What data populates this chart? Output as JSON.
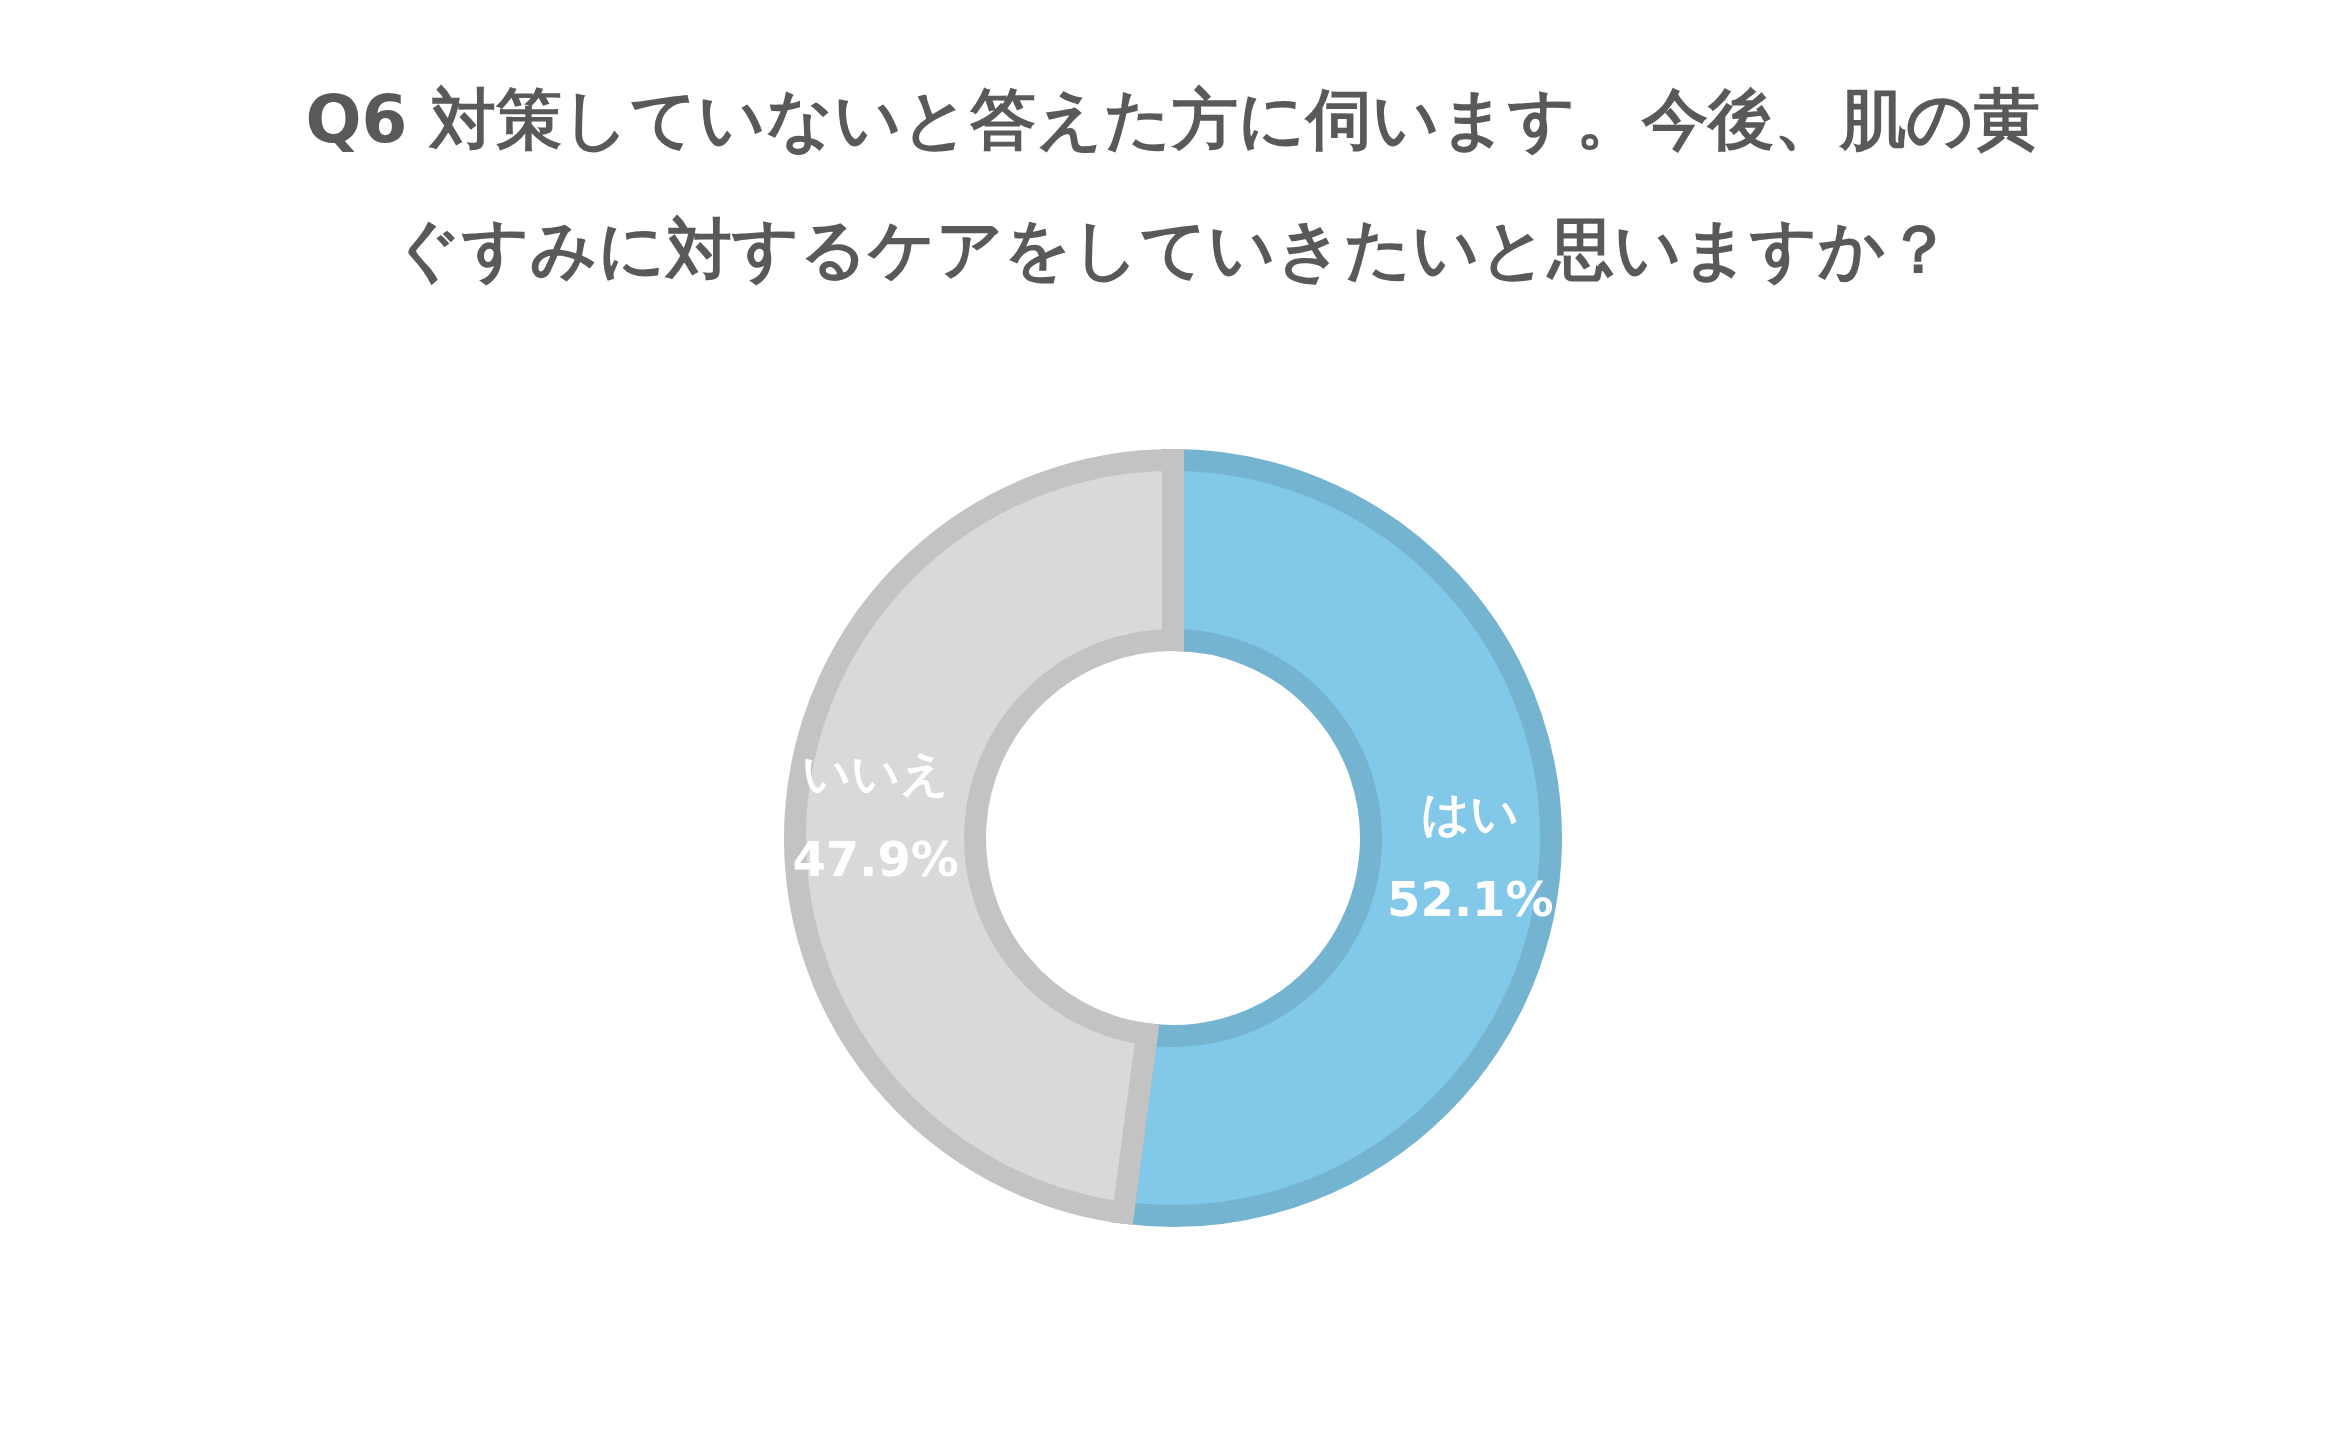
{
  "chart_data": {
    "type": "donut",
    "title": "Q6 対策していないと答えた方に伺います。今後、肌の黄ぐすみに対するケアをしていきたいと思いますか？",
    "categories": [
      "はい",
      "いいえ"
    ],
    "values": [
      52.1,
      47.9
    ],
    "colors": [
      "#82c8e8",
      "#d9d9d9"
    ],
    "value_labels": [
      "52.1%",
      "47.9%"
    ]
  }
}
